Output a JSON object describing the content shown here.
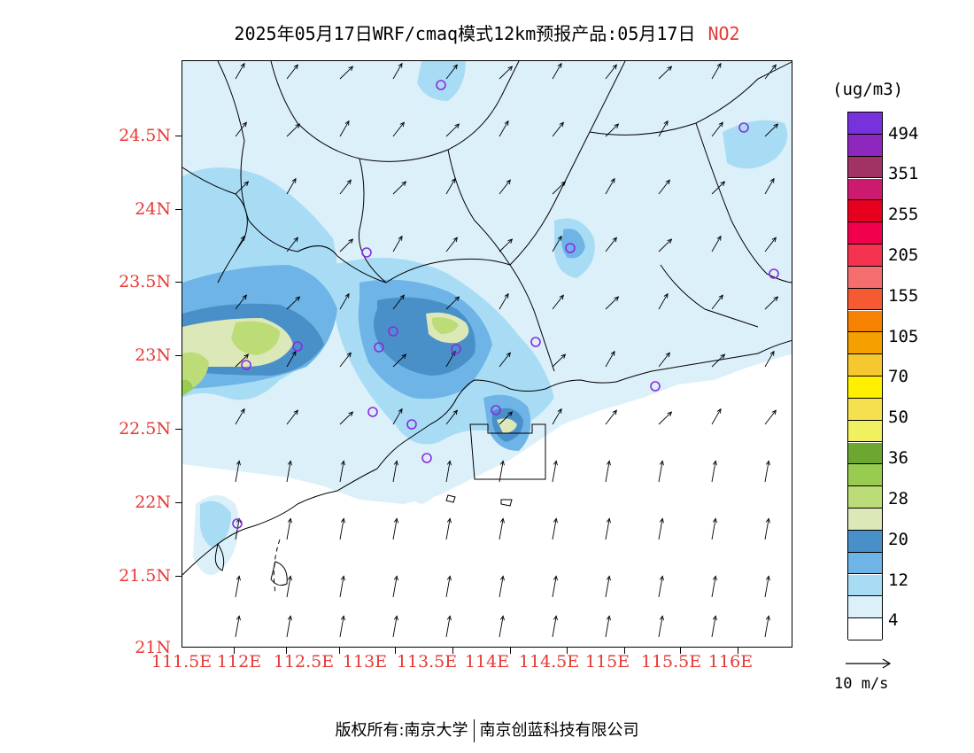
{
  "title": {
    "text": "2025年05月17日WRF/cmaq模式12km预报产品:05月17日",
    "species": "NO2"
  },
  "axes": {
    "lat_labels": [
      "24.5N",
      "24N",
      "23.5N",
      "23N",
      "22.5N",
      "22N",
      "21.5N",
      "21N"
    ],
    "lon_labels": [
      "111.5E",
      "112E",
      "112.5E",
      "113E",
      "113.5E",
      "114E",
      "114.5E",
      "115E",
      "115.5E",
      "116E"
    ]
  },
  "colorbar": {
    "units": "(ug/m3)",
    "levels": [
      "4",
      "12",
      "20",
      "28",
      "36",
      "50",
      "70",
      "105",
      "155",
      "205",
      "255",
      "351",
      "494"
    ],
    "colors": [
      "#ffffff",
      "#dcf0fa",
      "#a8dcf5",
      "#6eb4e6",
      "#4a90c8",
      "#dce8b8",
      "#bcdc78",
      "#98cc50",
      "#6ea632",
      "#f0f060",
      "#f5e050",
      "#fff000",
      "#f5c832",
      "#f5a000",
      "#f58200",
      "#f55a32",
      "#f56e6e",
      "#f53250",
      "#f0004a",
      "#e6001e",
      "#cc1a6e",
      "#a03264",
      "#8c28be",
      "#7832dc"
    ],
    "accent_text": "#e53935"
  },
  "wind": {
    "reference_label": "10 m/s"
  },
  "stations_color": "#8a2be2",
  "footer": {
    "left": "版权所有:南京大学",
    "right": "南京创蓝科技有限公司"
  }
}
